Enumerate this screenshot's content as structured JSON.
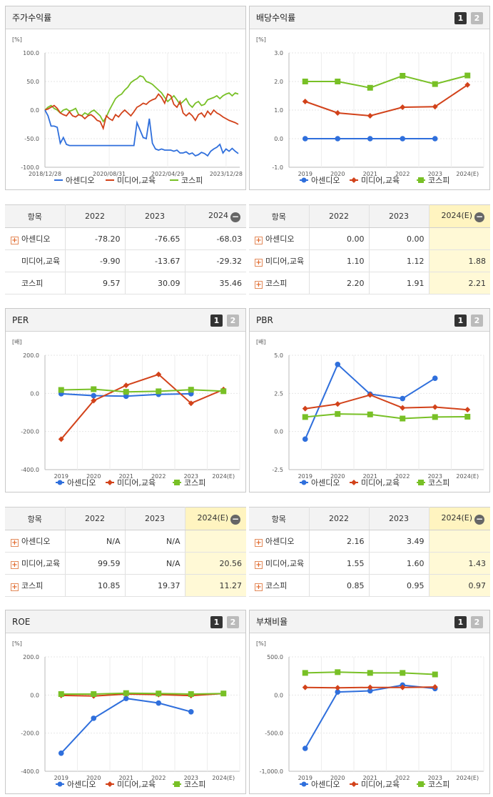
{
  "panels": {
    "stock": {
      "title": "주가수익률",
      "unit": "[%]"
    },
    "dividend": {
      "title": "배당수익률",
      "unit": "[%]"
    },
    "per": {
      "title": "PER",
      "unit": "[배]"
    },
    "pbr": {
      "title": "PBR",
      "unit": "[배]"
    },
    "roe": {
      "title": "ROE",
      "unit": "[%]"
    },
    "debt": {
      "title": "부채비율",
      "unit": "[%]"
    }
  },
  "buttons": {
    "one": "1",
    "two": "2"
  },
  "legend": {
    "s1": "아센디오",
    "s2": "미디어,교육",
    "s3": "코스피"
  },
  "colors": {
    "s1": "#2f6fdc",
    "s2": "#d2421a",
    "s3": "#78c026"
  },
  "tables": {
    "stock": {
      "head": [
        "항목",
        "2022",
        "2023",
        "2024"
      ],
      "rows": [
        {
          "name": "아센디오",
          "v": [
            "-78.20",
            "-76.65",
            "-68.03"
          ]
        },
        {
          "name": "미디어,교육",
          "v": [
            "-9.90",
            "-13.67",
            "-29.32"
          ]
        },
        {
          "name": "코스피",
          "v": [
            "9.57",
            "30.09",
            "35.46"
          ]
        }
      ]
    },
    "dividend": {
      "head": [
        "항목",
        "2022",
        "2023",
        "2024(E)"
      ],
      "rows": [
        {
          "name": "아센디오",
          "v": [
            "0.00",
            "0.00",
            ""
          ]
        },
        {
          "name": "미디어,교육",
          "v": [
            "1.10",
            "1.12",
            "1.88"
          ]
        },
        {
          "name": "코스피",
          "v": [
            "2.20",
            "1.91",
            "2.21"
          ]
        }
      ]
    },
    "per": {
      "head": [
        "항목",
        "2022",
        "2023",
        "2024(E)"
      ],
      "rows": [
        {
          "name": "아센디오",
          "v": [
            "N/A",
            "N/A",
            ""
          ]
        },
        {
          "name": "미디어,교육",
          "v": [
            "99.59",
            "N/A",
            "20.56"
          ]
        },
        {
          "name": "코스피",
          "v": [
            "10.85",
            "19.37",
            "11.27"
          ]
        }
      ]
    },
    "pbr": {
      "head": [
        "항목",
        "2022",
        "2023",
        "2024(E)"
      ],
      "rows": [
        {
          "name": "아센디오",
          "v": [
            "2.16",
            "3.49",
            ""
          ]
        },
        {
          "name": "미디어,교육",
          "v": [
            "1.55",
            "1.60",
            "1.43"
          ]
        },
        {
          "name": "코스피",
          "v": [
            "0.85",
            "0.95",
            "0.97"
          ]
        }
      ]
    }
  },
  "chart_data": [
    {
      "id": "stock",
      "type": "line",
      "title": "주가수익률",
      "x_ticks": [
        "2018/12/28",
        "2020/08/31",
        "2022/04/29",
        "2023/12/28"
      ],
      "ylim": [
        -100,
        100
      ],
      "y_ticks": [
        "100.0",
        "50.0",
        "0.0",
        "-50.0",
        "-100.0"
      ],
      "series": [
        {
          "name": "아센디오",
          "values": [
            0,
            -10,
            -28,
            -28,
            -30,
            -58,
            -48,
            -60,
            -62,
            -62,
            -62,
            -62,
            -62,
            -62,
            -62,
            -62,
            -62,
            -62,
            -62,
            -62,
            -62,
            -62,
            -62,
            -62,
            -62,
            -62,
            -62,
            -62,
            -62,
            -62,
            -22,
            -35,
            -48,
            -50,
            -15,
            -58,
            -68,
            -70,
            -68,
            -70,
            -70,
            -70,
            -72,
            -70,
            -75,
            -75,
            -73,
            -77,
            -75,
            -80,
            -78,
            -74,
            -76,
            -80,
            -72,
            -68,
            -65,
            -60,
            -75,
            -68,
            -72,
            -67,
            -72,
            -76
          ]
        },
        {
          "name": "미디어,교육",
          "values": [
            0,
            2,
            5,
            8,
            3,
            -5,
            -8,
            -10,
            -3,
            -10,
            -12,
            -8,
            -10,
            -15,
            -10,
            -8,
            -12,
            -18,
            -20,
            -32,
            -10,
            -15,
            -18,
            -8,
            -12,
            -5,
            0,
            -5,
            -10,
            -3,
            5,
            8,
            12,
            10,
            15,
            18,
            20,
            28,
            22,
            12,
            28,
            25,
            10,
            5,
            15,
            -5,
            -10,
            -5,
            -10,
            -18,
            -8,
            -5,
            -12,
            -2,
            -8,
            0,
            -5,
            -8,
            -12,
            -15,
            -18,
            -20,
            -22,
            -25
          ]
        },
        {
          "name": "코스피",
          "values": [
            0,
            5,
            8,
            3,
            0,
            -5,
            0,
            2,
            -2,
            0,
            3,
            -8,
            -10,
            -5,
            -8,
            -3,
            0,
            -5,
            -10,
            -20,
            -12,
            0,
            10,
            20,
            25,
            28,
            35,
            40,
            48,
            52,
            55,
            60,
            58,
            50,
            48,
            45,
            40,
            35,
            30,
            22,
            15,
            20,
            25,
            18,
            10,
            15,
            20,
            10,
            5,
            12,
            15,
            8,
            10,
            18,
            20,
            22,
            25,
            20,
            25,
            28,
            30,
            25,
            30,
            28
          ]
        }
      ]
    },
    {
      "id": "dividend",
      "type": "line",
      "title": "배당수익률",
      "categories": [
        "2019",
        "2020",
        "2021",
        "2022",
        "2023",
        "2024(E)"
      ],
      "ylim": [
        -1,
        3
      ],
      "y_ticks": [
        "3.0",
        "2.0",
        "1.0",
        "0.0",
        "-1.0"
      ],
      "series": [
        {
          "name": "아센디오",
          "values": [
            0.0,
            0.0,
            0.0,
            0.0,
            0.0,
            null
          ]
        },
        {
          "name": "미디어,교육",
          "values": [
            1.3,
            0.9,
            0.8,
            1.1,
            1.12,
            1.88
          ]
        },
        {
          "name": "코스피",
          "values": [
            2.0,
            2.0,
            1.78,
            2.2,
            1.91,
            2.21
          ]
        }
      ]
    },
    {
      "id": "per",
      "type": "line",
      "title": "PER",
      "categories": [
        "2019",
        "2020",
        "2021",
        "2022",
        "2023",
        "2024(E)"
      ],
      "ylim": [
        -400,
        200
      ],
      "y_ticks": [
        "200.0",
        "0.0",
        "-200.0",
        "-400.0"
      ],
      "series": [
        {
          "name": "아센디오",
          "values": [
            -2,
            -12,
            -15,
            -5,
            -2,
            null
          ]
        },
        {
          "name": "미디어,교육",
          "values": [
            -240,
            -38,
            42,
            99.59,
            -52,
            20.56
          ]
        },
        {
          "name": "코스피",
          "values": [
            18,
            22,
            8,
            10.85,
            19.37,
            11.27
          ]
        }
      ]
    },
    {
      "id": "pbr",
      "type": "line",
      "title": "PBR",
      "categories": [
        "2019",
        "2020",
        "2021",
        "2022",
        "2023",
        "2024(E)"
      ],
      "ylim": [
        -2.5,
        5
      ],
      "y_ticks": [
        "5.0",
        "2.5",
        "0.0",
        "-2.5"
      ],
      "series": [
        {
          "name": "아센디오",
          "values": [
            -0.5,
            4.4,
            2.45,
            2.16,
            3.49,
            null
          ]
        },
        {
          "name": "미디어,교육",
          "values": [
            1.5,
            1.8,
            2.4,
            1.55,
            1.6,
            1.43
          ]
        },
        {
          "name": "코스피",
          "values": [
            0.95,
            1.15,
            1.12,
            0.85,
            0.95,
            0.97
          ]
        }
      ]
    },
    {
      "id": "roe",
      "type": "line",
      "title": "ROE",
      "categories": [
        "2019",
        "2020",
        "2021",
        "2022",
        "2023",
        "2024(E)"
      ],
      "ylim": [
        -400,
        200
      ],
      "y_ticks": [
        "200.0",
        "0.0",
        "-200.0",
        "-400.0"
      ],
      "series": [
        {
          "name": "아센디오",
          "values": [
            -305,
            -122,
            -18,
            -42,
            -88,
            null
          ]
        },
        {
          "name": "미디어,교육",
          "values": [
            -2,
            -5,
            5,
            2,
            -3,
            8
          ]
        },
        {
          "name": "코스피",
          "values": [
            5,
            5,
            10,
            8,
            5,
            8
          ]
        }
      ]
    },
    {
      "id": "debt",
      "type": "line",
      "title": "부채비율",
      "categories": [
        "2019",
        "2020",
        "2021",
        "2022",
        "2023",
        "2024(E)"
      ],
      "ylim": [
        -1000,
        500
      ],
      "y_ticks": [
        "500.0",
        "0.0",
        "-500.0",
        "-1,000.0"
      ],
      "series": [
        {
          "name": "아센디오",
          "values": [
            -700,
            40,
            55,
            130,
            85,
            null
          ]
        },
        {
          "name": "미디어,교육",
          "values": [
            100,
            95,
            100,
            100,
            105,
            null
          ]
        },
        {
          "name": "코스피",
          "values": [
            290,
            300,
            290,
            290,
            270,
            null
          ]
        }
      ]
    }
  ]
}
